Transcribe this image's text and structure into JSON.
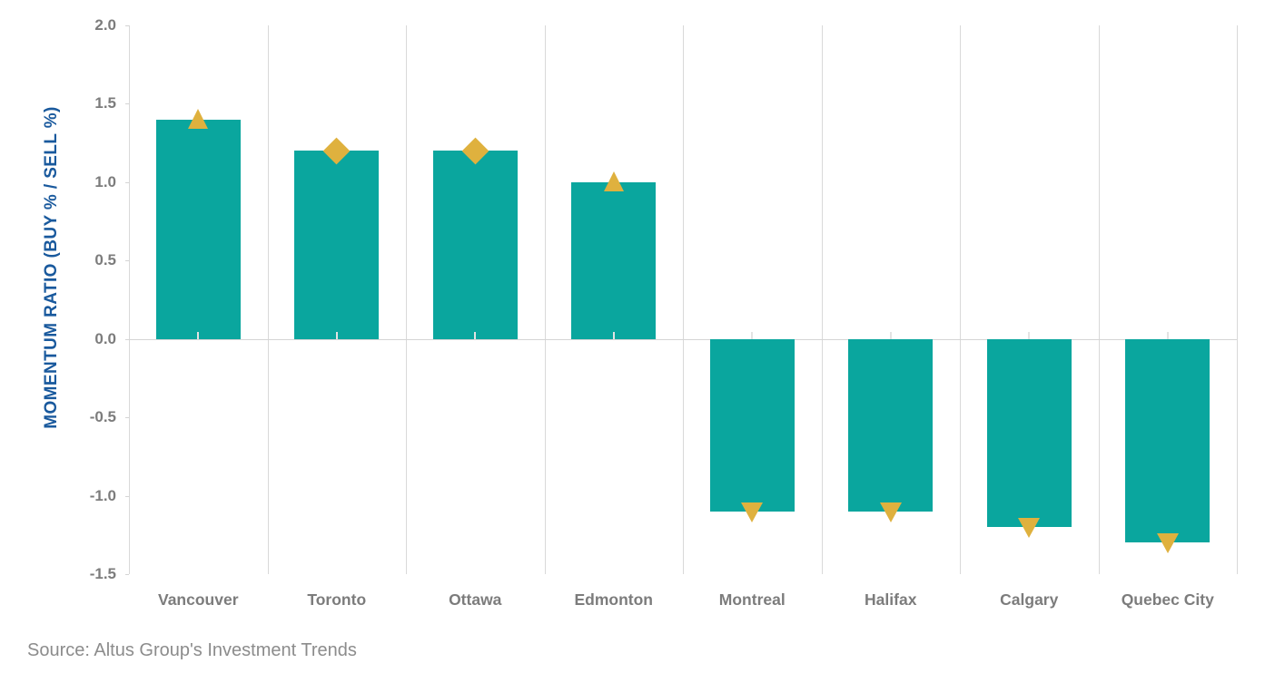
{
  "chart_data": {
    "type": "bar",
    "title": "",
    "xlabel": "",
    "ylabel": "MOMENTUM RATIO (BUY % / SELL %)",
    "ylim": [
      -1.5,
      2.0
    ],
    "yticks": [
      2.0,
      1.5,
      1.0,
      0.5,
      0.0,
      -0.5,
      -1.0,
      -1.5
    ],
    "categories": [
      "Vancouver",
      "Toronto",
      "Ottawa",
      "Edmonton",
      "Montreal",
      "Halifax",
      "Calgary",
      "Quebec City"
    ],
    "values": [
      1.4,
      1.2,
      1.2,
      1.0,
      -1.1,
      -1.1,
      -1.2,
      -1.3
    ],
    "markers": [
      "triangle-up",
      "diamond",
      "diamond",
      "triangle-up",
      "triangle-down",
      "triangle-down",
      "triangle-down",
      "triangle-down"
    ],
    "legend": "none",
    "grid": "vertical-category-separators-and-zero-line",
    "colors": {
      "bar": "#0AA69E",
      "marker": "#DFB13E",
      "axis_title": "#19599D",
      "tick_label": "#7C7C7C",
      "gridline": "#D9D9D9"
    }
  },
  "source_note": "Source: Altus Group's Investment Trends"
}
